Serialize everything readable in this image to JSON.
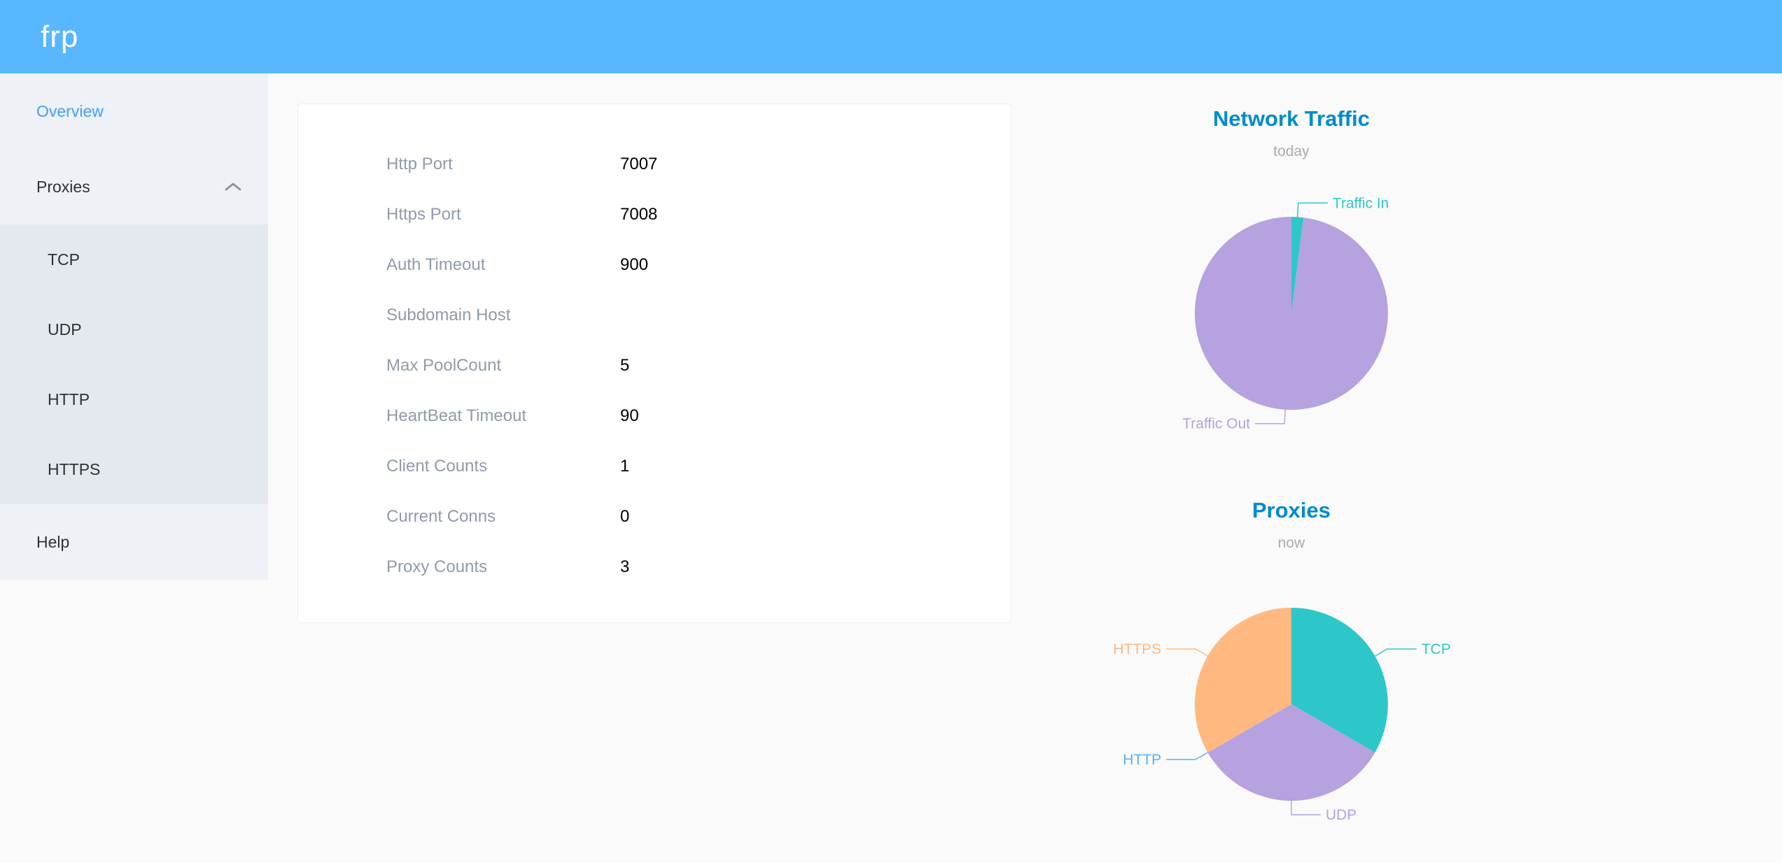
{
  "header": {
    "logo": "frp",
    "background": "#58b7ff"
  },
  "sidebar": {
    "active_color": "#409eff",
    "items": [
      {
        "label": "Overview",
        "active": true
      },
      {
        "label": "Proxies",
        "expanded": true,
        "children": [
          "TCP",
          "UDP",
          "HTTP",
          "HTTPS"
        ]
      },
      {
        "label": "Help"
      }
    ]
  },
  "overview_card": {
    "rows": [
      {
        "label": "Http Port",
        "value": "7007"
      },
      {
        "label": "Https Port",
        "value": "7008"
      },
      {
        "label": "Auth Timeout",
        "value": "900"
      },
      {
        "label": "Subdomain Host",
        "value": ""
      },
      {
        "label": "Max PoolCount",
        "value": "5"
      },
      {
        "label": "HeartBeat Timeout",
        "value": "90"
      },
      {
        "label": "Client Counts",
        "value": "1"
      },
      {
        "label": "Current Conns",
        "value": "0"
      },
      {
        "label": "Proxy Counts",
        "value": "3"
      }
    ]
  },
  "chart_data": [
    {
      "type": "pie",
      "title": "Network Traffic",
      "subtitle": "today",
      "legend_position": "none",
      "series": [
        {
          "name": "Traffic In",
          "value": 2,
          "color": "#2ec7c9"
        },
        {
          "name": "Traffic Out",
          "value": 98,
          "color": "#b6a2de"
        }
      ]
    },
    {
      "type": "pie",
      "title": "Proxies",
      "subtitle": "now",
      "legend_position": "none",
      "series": [
        {
          "name": "TCP",
          "value": 1,
          "color": "#2ec7c9"
        },
        {
          "name": "UDP",
          "value": 1,
          "color": "#b6a2de"
        },
        {
          "name": "HTTP",
          "value": 0,
          "color": "#5ab1ef"
        },
        {
          "name": "HTTPS",
          "value": 1,
          "color": "#ffb980"
        }
      ]
    }
  ],
  "icons": {
    "chevron_up_icon": "chevron-up"
  },
  "colors": {
    "title": "#008acd",
    "subtitle": "#aaaaaa",
    "page_bg": "#fafafa"
  }
}
